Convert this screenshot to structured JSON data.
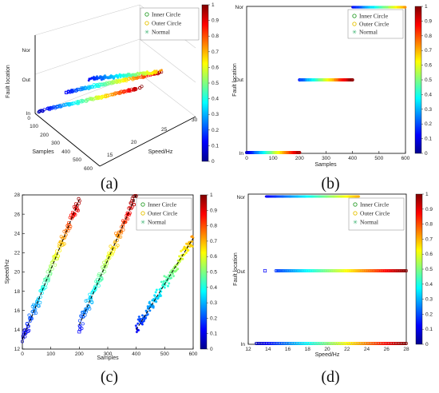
{
  "legend": {
    "items": [
      {
        "label": "Inner Circle",
        "marker": "circle",
        "color": "#2ca02c"
      },
      {
        "label": "Outer Circle",
        "marker": "circle",
        "color": "#e6c200"
      },
      {
        "label": "Normal",
        "marker": "star",
        "color": "#3cb371"
      }
    ]
  },
  "colorbar": {
    "ticks": [
      "0",
      "0.1",
      "0.2",
      "0.3",
      "0.4",
      "0.5",
      "0.6",
      "0.7",
      "0.8",
      "0.9",
      "1"
    ],
    "colormap": "jet"
  },
  "panel_labels": [
    "(a)",
    "(b)",
    "(c)",
    "(d)"
  ],
  "chart_data": [
    {
      "id": "a",
      "type": "scatter3d",
      "xlabel": "Samples",
      "ylabel": "Speed/Hz",
      "zlabel": "Fault location",
      "xticks": [
        "0",
        "100",
        "200",
        "300",
        "400",
        "500",
        "600"
      ],
      "yticks": [
        "15",
        "20",
        "25",
        "30"
      ],
      "zticks": [
        "In",
        "Out",
        "Nor"
      ],
      "xlim": [
        0,
        600
      ],
      "ylim": [
        12,
        30
      ],
      "series": [
        {
          "name": "Inner Circle",
          "z": "In",
          "samples": [
            0,
            200
          ],
          "speed": [
            13,
            27.5
          ]
        },
        {
          "name": "Outer Circle",
          "z": "Out",
          "samples": [
            200,
            400
          ],
          "speed": [
            14,
            27.5
          ]
        },
        {
          "name": "Normal",
          "z": "Nor",
          "samples": [
            400,
            600
          ],
          "speed": [
            14,
            23
          ]
        }
      ]
    },
    {
      "id": "b",
      "type": "scatter",
      "xlabel": "Samples",
      "ylabel": "Fault location",
      "xticks": [
        "0",
        "100",
        "200",
        "300",
        "400",
        "500",
        "600"
      ],
      "yticks": [
        "In",
        "Out",
        "Nor"
      ],
      "xlim": [
        0,
        600
      ],
      "series": [
        {
          "name": "Inner Circle",
          "y": "In",
          "x_range": [
            0,
            200
          ]
        },
        {
          "name": "Outer Circle",
          "y": "Out",
          "x_range": [
            200,
            400
          ]
        },
        {
          "name": "Normal",
          "y": "Nor",
          "x_range": [
            400,
            600
          ]
        }
      ]
    },
    {
      "id": "c",
      "type": "scatter",
      "xlabel": "Samples",
      "ylabel": "Speed/Hz",
      "xticks": [
        "0",
        "100",
        "200",
        "300",
        "400",
        "500",
        "600"
      ],
      "yticks": [
        "12",
        "14",
        "16",
        "18",
        "20",
        "22",
        "24",
        "26",
        "28"
      ],
      "xlim": [
        0,
        600
      ],
      "ylim": [
        12,
        28
      ],
      "series": [
        {
          "name": "Inner Circle",
          "fit": {
            "x": [
              0,
              200
            ],
            "y": [
              13,
              27.5
            ]
          }
        },
        {
          "name": "Outer Circle",
          "fit": {
            "x": [
              200,
              400
            ],
            "y": [
              14.5,
              28
            ]
          }
        },
        {
          "name": "Normal",
          "fit": {
            "x": [
              400,
              600
            ],
            "y": [
              14,
              23.5
            ]
          }
        }
      ],
      "outliers": [
        {
          "x": 200,
          "y": 13.8
        }
      ]
    },
    {
      "id": "d",
      "type": "scatter",
      "xlabel": "Speed/Hz",
      "ylabel": "Fault location",
      "xticks": [
        "12",
        "14",
        "16",
        "18",
        "20",
        "22",
        "24",
        "26",
        "28"
      ],
      "yticks": [
        "In",
        "Out",
        "Nor"
      ],
      "xlim": [
        12,
        28
      ],
      "series": [
        {
          "name": "Inner Circle",
          "y": "In",
          "x_range": [
            12.8,
            28
          ]
        },
        {
          "name": "Outer Circle",
          "y": "Out",
          "x_range": [
            14.8,
            28
          ]
        },
        {
          "name": "Normal",
          "y": "Nor",
          "x_range": [
            13.8,
            23.2
          ]
        }
      ],
      "outliers": [
        {
          "x": 13.7,
          "y": "Out"
        }
      ]
    }
  ]
}
